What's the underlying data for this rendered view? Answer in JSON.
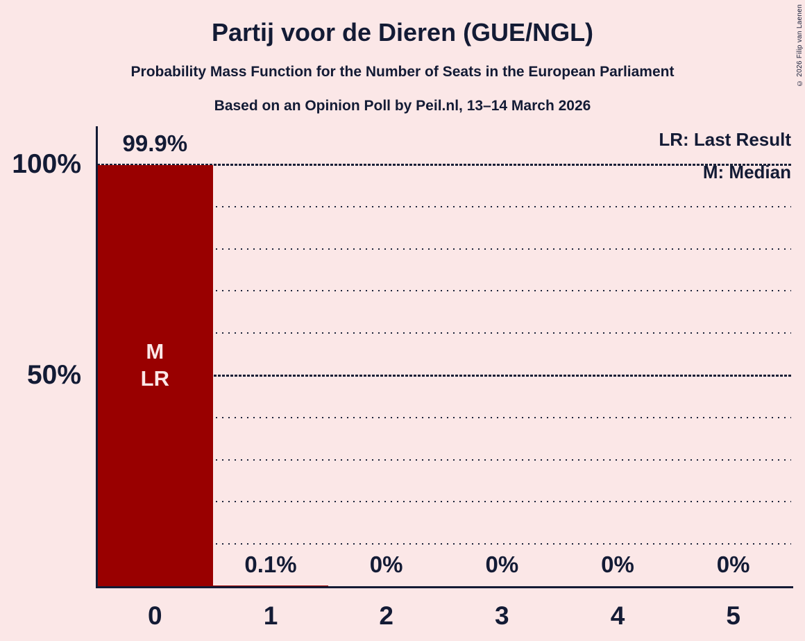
{
  "header": {
    "title": "Partij voor de Dieren (GUE/NGL)",
    "subtitle": "Probability Mass Function for the Number of Seats in the European Parliament",
    "poll_info": "Based on an Opinion Poll by Peil.nl, 13–14 March 2026"
  },
  "legend": {
    "lr": "LR: Last Result",
    "m": "M: Median"
  },
  "copyright": "© 2026 Filip van Laenen",
  "colors": {
    "background": "#fbe7e7",
    "bar": "#990000",
    "text": "#131b35",
    "bar_label_text": "#fbe7e7",
    "gridline": "#1a2138"
  },
  "chart_data": {
    "type": "bar",
    "title": "Partij voor de Dieren (GUE/NGL)",
    "subtitle": "Probability Mass Function for the Number of Seats in the European Parliament",
    "annotation_note": "Based on an Opinion Poll by Peil.nl, 13–14 March 2026",
    "categories": [
      "0",
      "1",
      "2",
      "3",
      "4",
      "5"
    ],
    "values": [
      99.9,
      0.1,
      0,
      0,
      0,
      0
    ],
    "value_labels": [
      "99.9%",
      "0.1%",
      "0%",
      "0%",
      "0%",
      "0%"
    ],
    "ylim": [
      0,
      100
    ],
    "y_ticks": [
      {
        "label": "100%",
        "value": 100
      },
      {
        "label": "50%",
        "value": 50
      }
    ],
    "gridlines": {
      "dotted_values": [
        10,
        20,
        30,
        40,
        60,
        70,
        80,
        90
      ],
      "dashed_values": [
        50,
        100
      ]
    },
    "grid": true,
    "legend_position": "top-right",
    "legend_entries": [
      "LR: Last Result",
      "M: Median"
    ],
    "bar_annotation": {
      "bar_index": 0,
      "lines": [
        "M",
        "LR"
      ]
    },
    "median_seats": "0",
    "last_result_seats": "0"
  }
}
